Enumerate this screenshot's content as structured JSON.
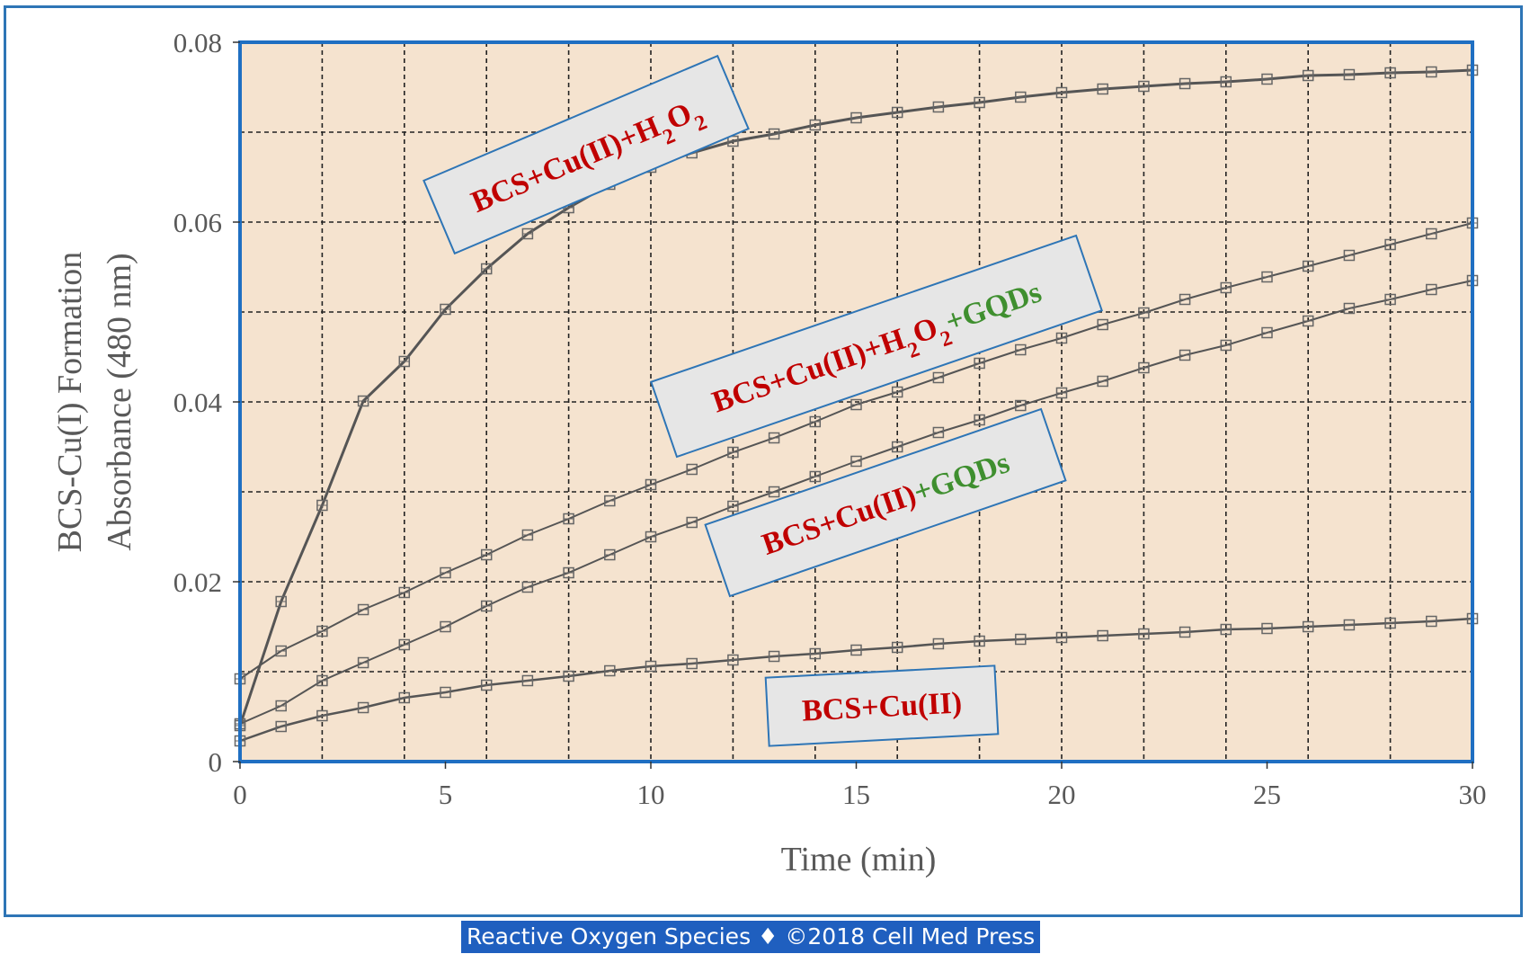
{
  "chart_data": {
    "type": "line",
    "title": "",
    "xlabel": "Time (min)",
    "ylabel_line1": "BCS-Cu(I) Formation",
    "ylabel_line2": "Absorbance  (480 nm)",
    "xlim": [
      0,
      30
    ],
    "ylim": [
      0,
      0.08
    ],
    "x_ticks": [
      0,
      5,
      10,
      15,
      20,
      25,
      30
    ],
    "x_tick_labels": [
      "0",
      "5",
      "10",
      "15",
      "20",
      "25",
      "30"
    ],
    "y_ticks": [
      0,
      0.02,
      0.04,
      0.06,
      0.08
    ],
    "y_tick_labels": [
      "0",
      "0.02",
      "0.04",
      "0.06",
      "0.08"
    ],
    "grid": true,
    "plot_background": "#f5e3cf",
    "series_color": "#555555",
    "series": [
      {
        "x": [
          0,
          1,
          2,
          3,
          4,
          5,
          6,
          7,
          8,
          9,
          10,
          11,
          12,
          13,
          14,
          15,
          16,
          17,
          18,
          19,
          20,
          21,
          22,
          23,
          24,
          25,
          26,
          27,
          28,
          29,
          30
        ],
        "y": [
          0.004,
          0.0178,
          0.0285,
          0.0401,
          0.0445,
          0.0503,
          0.0548,
          0.0587,
          0.0616,
          0.0642,
          0.0661,
          0.0677,
          0.069,
          0.0698,
          0.0708,
          0.0716,
          0.0722,
          0.0728,
          0.0733,
          0.0739,
          0.0744,
          0.0748,
          0.0751,
          0.0754,
          0.0756,
          0.0759,
          0.0763,
          0.0764,
          0.0766,
          0.0767,
          0.0769
        ]
      },
      {
        "x": [
          0,
          1,
          2,
          3,
          4,
          5,
          6,
          7,
          8,
          9,
          10,
          11,
          12,
          13,
          14,
          15,
          16,
          17,
          18,
          19,
          20,
          21,
          22,
          23,
          24,
          25,
          26,
          27,
          28,
          29,
          30
        ],
        "y": [
          0.0092,
          0.0123,
          0.0145,
          0.0169,
          0.0188,
          0.021,
          0.023,
          0.0252,
          0.027,
          0.029,
          0.0308,
          0.0325,
          0.0344,
          0.036,
          0.0378,
          0.0397,
          0.0411,
          0.0427,
          0.0443,
          0.0458,
          0.0471,
          0.0486,
          0.0499,
          0.0514,
          0.0527,
          0.0539,
          0.0551,
          0.0563,
          0.0575,
          0.0587,
          0.0599
        ]
      },
      {
        "x": [
          0,
          1,
          2,
          3,
          4,
          5,
          6,
          7,
          8,
          9,
          10,
          11,
          12,
          13,
          14,
          15,
          16,
          17,
          18,
          19,
          20,
          21,
          22,
          23,
          24,
          25,
          26,
          27,
          28,
          29,
          30
        ],
        "y": [
          0.0042,
          0.0062,
          0.009,
          0.011,
          0.013,
          0.015,
          0.0173,
          0.0194,
          0.021,
          0.023,
          0.025,
          0.0266,
          0.0284,
          0.03,
          0.0317,
          0.0334,
          0.035,
          0.0366,
          0.038,
          0.0396,
          0.041,
          0.0423,
          0.0438,
          0.0452,
          0.0463,
          0.0477,
          0.049,
          0.0504,
          0.0514,
          0.0525,
          0.0535
        ]
      },
      {
        "x": [
          0,
          1,
          2,
          3,
          4,
          5,
          6,
          7,
          8,
          9,
          10,
          11,
          12,
          13,
          14,
          15,
          16,
          17,
          18,
          19,
          20,
          21,
          22,
          23,
          24,
          25,
          26,
          27,
          28,
          29,
          30
        ],
        "y": [
          0.0023,
          0.0039,
          0.0051,
          0.006,
          0.0071,
          0.0077,
          0.0085,
          0.009,
          0.0095,
          0.0101,
          0.0106,
          0.0109,
          0.0113,
          0.0117,
          0.012,
          0.0124,
          0.0127,
          0.0131,
          0.0134,
          0.0136,
          0.0138,
          0.014,
          0.0142,
          0.0144,
          0.0147,
          0.0148,
          0.015,
          0.0152,
          0.0154,
          0.0156,
          0.0159
        ]
      }
    ],
    "callouts": [
      {
        "parts": [
          {
            "text": "BCS+Cu(II)+H",
            "color": "#c00000"
          },
          {
            "text": "2",
            "color": "#c00000",
            "sub": true
          },
          {
            "text": "O",
            "color": "#c00000"
          },
          {
            "text": "2",
            "color": "#c00000",
            "sub": true
          }
        ]
      },
      {
        "parts": [
          {
            "text": "BCS+Cu(II)+H",
            "color": "#c00000"
          },
          {
            "text": "2",
            "color": "#c00000",
            "sub": true
          },
          {
            "text": "O",
            "color": "#c00000"
          },
          {
            "text": "2",
            "color": "#c00000",
            "sub": true
          },
          {
            "text": "+GQDs",
            "color": "#3f8f2f"
          }
        ]
      },
      {
        "parts": [
          {
            "text": "BCS+Cu(II)",
            "color": "#c00000"
          },
          {
            "text": "+GQDs",
            "color": "#3f8f2f"
          }
        ]
      },
      {
        "parts": [
          {
            "text": "BCS+Cu(II)",
            "color": "#c00000"
          }
        ]
      }
    ]
  },
  "footer": {
    "text": "Reactive Oxygen Species ♦ ©2018 Cell Med Press"
  },
  "colors": {
    "frame_border": "#2e75b6",
    "plot_border": "#1f6fc2",
    "footer_bg": "#1f5fbf",
    "callout_bg": "#e6e6e6",
    "callout_border": "#2e75b6"
  }
}
